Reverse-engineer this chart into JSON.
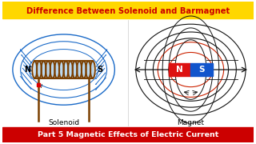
{
  "title": "Difference Between Solenoid and Barmagnet",
  "title_color": "#cc0000",
  "title_bg": "#FFD700",
  "bottom_text": "Part 5 Magnetic Effects of Electric Current",
  "bottom_bg": "#cc0000",
  "bottom_text_color": "#ffffff",
  "solenoid_label": "Solenoid",
  "magnet_label": "Magnet",
  "bg_color": "#ffffff",
  "N_label": "N",
  "S_label": "S",
  "line_color_blue": "#1a6ac8",
  "line_color_red": "#cc2200",
  "line_color_black": "#111111",
  "coil_color": "#7B3F00",
  "coil_fill": "#a0c8e8",
  "magnet_red": "#dd1111",
  "magnet_blue": "#1155cc",
  "wire_color": "#7B3F00"
}
